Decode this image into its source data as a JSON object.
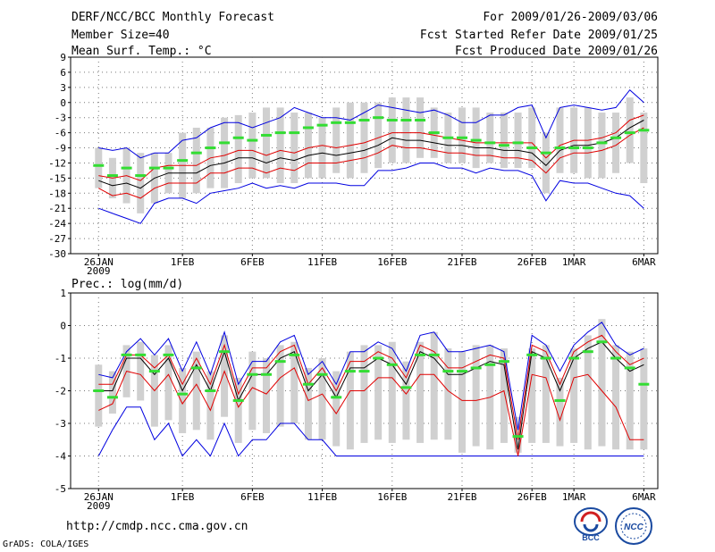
{
  "header": {
    "title": "DERF/NCC/BCC Monthly Forecast",
    "member_size": "Member Size=40",
    "variable": "Mean Surf. Temp.: °C",
    "period": "For 2009/01/26-2009/03/06",
    "fcst_started": "Fcst Started Refer Date 2009/01/25",
    "fcst_produced": "Fcst Produced Date 2009/01/26"
  },
  "footer": {
    "url": "http://cmdp.ncc.cma.gov.cn",
    "credit": "GrADS: COLA/IGES",
    "logo_left_text": "BCC",
    "logo_right_text": "NCC"
  },
  "colors": {
    "ensemble_mean": "#000000",
    "spread_band": "#e00000",
    "extreme_range": "#0000e0",
    "observed_climate": "#33dd33",
    "member_bar": "#d0d0d0"
  },
  "chart_data": [
    {
      "type": "line",
      "title": "Mean Surf. Temp.: °C",
      "x_tick_labels": [
        "26JAN\n2009",
        "1FEB",
        "6FEB",
        "11FEB",
        "16FEB",
        "21FEB",
        "26FEB",
        "1MAR",
        "6MAR"
      ],
      "x_tick_days": [
        0,
        6,
        11,
        16,
        21,
        26,
        31,
        34,
        39
      ],
      "ylim": [
        -30,
        9
      ],
      "yticks": [
        9,
        6,
        3,
        0,
        -3,
        -6,
        -9,
        -12,
        -15,
        -18,
        -21,
        -24,
        -27,
        -30
      ],
      "ytick_labels": [
        "9",
        "6",
        "3",
        "0",
        "-3",
        "-6",
        "-9",
        "-12",
        "-15",
        "-18",
        "-21",
        "-24",
        "-27",
        "-30"
      ],
      "days": [
        0,
        1,
        2,
        3,
        4,
        5,
        6,
        7,
        8,
        9,
        10,
        11,
        12,
        13,
        14,
        15,
        16,
        17,
        18,
        19,
        20,
        21,
        22,
        23,
        24,
        25,
        26,
        27,
        28,
        29,
        30,
        31,
        32,
        33,
        34,
        35,
        36,
        37,
        38,
        39
      ],
      "series": [
        {
          "name": "ensemble_mean",
          "values": [
            -15.5,
            -16.5,
            -16,
            -17,
            -15,
            -14,
            -14,
            -14,
            -12.5,
            -12,
            -11,
            -11,
            -12,
            -11,
            -11.5,
            -10.5,
            -10,
            -10.5,
            -10,
            -9.5,
            -8.5,
            -7,
            -7.5,
            -7.5,
            -8,
            -8.5,
            -8.5,
            -9,
            -9,
            -9.5,
            -9.5,
            -10,
            -12.5,
            -9.5,
            -8.5,
            -8.5,
            -8,
            -7,
            -5,
            -3.5
          ]
        },
        {
          "name": "upper_spread",
          "values": [
            -14.5,
            -15,
            -14.5,
            -15.5,
            -13,
            -12.5,
            -12.5,
            -12.5,
            -11,
            -10.5,
            -9.5,
            -9.5,
            -10.5,
            -9.5,
            -10,
            -9,
            -8.5,
            -9,
            -8.5,
            -8,
            -7,
            -6,
            -6,
            -6,
            -6.5,
            -7,
            -7.5,
            -8,
            -8,
            -8,
            -8,
            -8,
            -11,
            -8.5,
            -7.5,
            -7.5,
            -7,
            -6,
            -3.5,
            -2.5
          ]
        },
        {
          "name": "lower_spread",
          "values": [
            -17,
            -18.5,
            -18,
            -19,
            -17,
            -16,
            -16,
            -16,
            -14,
            -14,
            -13,
            -13,
            -14,
            -13,
            -13.5,
            -12,
            -12,
            -12,
            -11.5,
            -11,
            -10,
            -8.5,
            -9,
            -9,
            -9.5,
            -10,
            -10,
            -10.5,
            -10.5,
            -11,
            -11,
            -11.5,
            -14,
            -11,
            -10,
            -10,
            -9.5,
            -8.5,
            -6.5,
            -5
          ]
        },
        {
          "name": "max_member",
          "values": [
            -9,
            -9.5,
            -9,
            -11,
            -10,
            -10,
            -7.5,
            -7,
            -5,
            -4,
            -4,
            -5,
            -4,
            -3,
            -1,
            -2,
            -3,
            -3,
            -3.5,
            -2,
            -0.5,
            -1,
            -1.5,
            -2,
            -1.5,
            -2.5,
            -4,
            -4,
            -2.5,
            -2.5,
            -1,
            -0.5,
            -7,
            -1,
            -0.5,
            -1,
            -1.5,
            -1,
            2.5,
            0
          ]
        },
        {
          "name": "min_member",
          "values": [
            -21,
            -22,
            -23,
            -24,
            -20,
            -19,
            -19,
            -20,
            -18,
            -17.5,
            -17,
            -16,
            -17,
            -16.5,
            -17,
            -16,
            -16,
            -16,
            -16.5,
            -16.5,
            -13.5,
            -13.5,
            -13,
            -12,
            -12,
            -13,
            -13,
            -14,
            -13,
            -13.5,
            -13.5,
            -14.5,
            -19.5,
            -15.5,
            -16,
            -16,
            -17,
            -18,
            -18.5,
            -21
          ]
        },
        {
          "name": "observed_climate",
          "values": [
            -12.5,
            -14.5,
            -13,
            -14.5,
            -13,
            -13,
            -11.5,
            -10,
            -9,
            -8,
            -7,
            -7.5,
            -6.5,
            -6,
            -6,
            -5,
            -4.5,
            -4,
            -4,
            -3.5,
            -3,
            -3.5,
            -3.5,
            -3.5,
            -6,
            -7,
            -7,
            -7.5,
            -8,
            -8.5,
            -8,
            -9,
            -10,
            -9,
            -9,
            -9,
            -8,
            -7,
            -6,
            -5.5
          ]
        },
        {
          "name": "member_bar_top",
          "values": [
            -9,
            -11,
            -9,
            -10,
            -10,
            -10,
            -6,
            -5,
            -5,
            -3,
            -2.5,
            -2,
            -1,
            -1,
            -2,
            -2,
            -3,
            -1,
            0,
            0,
            0,
            1,
            1,
            1,
            -1,
            -2,
            -1,
            -1,
            -2,
            -2,
            -2,
            -1,
            -6,
            -1,
            -1,
            -1,
            -2,
            -2,
            1,
            -2
          ]
        },
        {
          "name": "member_bar_bottom",
          "values": [
            -17,
            -19,
            -20,
            -22,
            -20,
            -18,
            -19,
            -18,
            -17,
            -17,
            -16,
            -15,
            -15,
            -16,
            -16,
            -15,
            -15,
            -14,
            -15,
            -14,
            -13,
            -12,
            -12,
            -11,
            -11,
            -12,
            -12,
            -13,
            -12,
            -13,
            -13,
            -13,
            -18,
            -14,
            -14,
            -15,
            -15,
            -14,
            -12,
            -16
          ]
        }
      ]
    },
    {
      "type": "line",
      "title": "Prec.: log(mm/d)",
      "x_tick_labels": [
        "26JAN\n2009",
        "1FEB",
        "6FEB",
        "11FEB",
        "16FEB",
        "21FEB",
        "26FEB",
        "1MAR",
        "6MAR"
      ],
      "x_tick_days": [
        0,
        6,
        11,
        16,
        21,
        26,
        31,
        34,
        39
      ],
      "ylim": [
        -5,
        1
      ],
      "yticks": [
        1,
        0,
        -1,
        -2,
        -3,
        -4,
        -5
      ],
      "ytick_labels": [
        "1",
        "0",
        "-1",
        "-2",
        "-3",
        "-4",
        "-5"
      ],
      "days": [
        0,
        1,
        2,
        3,
        4,
        5,
        6,
        7,
        8,
        9,
        10,
        11,
        12,
        13,
        14,
        15,
        16,
        17,
        18,
        19,
        20,
        21,
        22,
        23,
        24,
        25,
        26,
        27,
        28,
        29,
        30,
        31,
        32,
        33,
        34,
        35,
        36,
        37,
        38,
        39
      ],
      "series": [
        {
          "name": "ensemble_mean",
          "values": [
            -2,
            -2,
            -1,
            -1,
            -1.5,
            -1,
            -2,
            -1.2,
            -2,
            -0.8,
            -2.3,
            -1.5,
            -1.5,
            -1,
            -0.8,
            -2,
            -1.5,
            -2.2,
            -1.3,
            -1.3,
            -1,
            -1.2,
            -1.8,
            -0.8,
            -1,
            -1.5,
            -1.5,
            -1.3,
            -1.1,
            -1.2,
            -3.8,
            -0.8,
            -1,
            -2,
            -1,
            -0.7,
            -0.5,
            -1,
            -1.4,
            -1.2
          ]
        },
        {
          "name": "upper_spread",
          "values": [
            -1.8,
            -1.8,
            -0.9,
            -0.9,
            -1.3,
            -0.9,
            -1.8,
            -1,
            -1.8,
            -0.6,
            -2.1,
            -1.3,
            -1.3,
            -0.8,
            -0.6,
            -1.8,
            -1.3,
            -2,
            -1.1,
            -1.1,
            -0.8,
            -1,
            -1.6,
            -0.6,
            -0.8,
            -1.3,
            -1.3,
            -1.1,
            -0.9,
            -1,
            -3.5,
            -0.6,
            -0.8,
            -1.8,
            -0.8,
            -0.5,
            -0.3,
            -0.8,
            -1.2,
            -1
          ]
        },
        {
          "name": "lower_spread",
          "values": [
            -2.6,
            -2.4,
            -1.4,
            -1.5,
            -2,
            -1.5,
            -2.4,
            -1.8,
            -2.6,
            -1.4,
            -2.5,
            -1.9,
            -2.1,
            -1.6,
            -1.3,
            -2.3,
            -2.1,
            -2.7,
            -2,
            -2,
            -1.6,
            -1.6,
            -2.1,
            -1.5,
            -1.5,
            -2,
            -2.3,
            -2.3,
            -2.2,
            -2,
            -4,
            -1.5,
            -1.6,
            -2.9,
            -1.6,
            -1.5,
            -2,
            -2.5,
            -3.5,
            -3.5
          ]
        },
        {
          "name": "max_member",
          "values": [
            -1.5,
            -1.6,
            -0.8,
            -0.4,
            -0.9,
            -0.4,
            -1.4,
            -0.5,
            -1.5,
            -0.2,
            -1.8,
            -1.1,
            -1.1,
            -0.5,
            -0.3,
            -1.5,
            -1.1,
            -1.8,
            -0.8,
            -0.8,
            -0.5,
            -0.7,
            -1.4,
            -0.3,
            -0.2,
            -0.8,
            -0.8,
            -0.7,
            -0.6,
            -0.8,
            -3.2,
            -0.3,
            -0.6,
            -1.4,
            -0.6,
            -0.2,
            0.1,
            -0.6,
            -0.9,
            -0.7
          ]
        },
        {
          "name": "min_member",
          "values": [
            -4,
            -3.2,
            -2.5,
            -2.5,
            -3.5,
            -3,
            -4,
            -3.5,
            -4,
            -3,
            -4,
            -3.5,
            -3.5,
            -3,
            -3,
            -3.5,
            -3.5,
            -4,
            -4,
            -4,
            -4,
            -4,
            -4,
            -4,
            -4,
            -4,
            -4,
            -4,
            -4,
            -4,
            -4,
            -4,
            -4,
            -4,
            -4,
            -4,
            -4,
            -4,
            -4,
            -4
          ]
        },
        {
          "name": "observed_climate",
          "values": [
            -2,
            -2.2,
            -0.9,
            -0.9,
            -1.4,
            -0.9,
            -2.1,
            -1.3,
            -2,
            -0.8,
            -2.3,
            -1.5,
            -1.5,
            -1.1,
            -0.9,
            -1.8,
            -1.5,
            -2.2,
            -1.4,
            -1.4,
            -1,
            -1.2,
            -1.9,
            -0.9,
            -0.9,
            -1.4,
            -1.4,
            -1.3,
            -1.2,
            -1.1,
            -3.4,
            -0.9,
            -1,
            -2.3,
            -1,
            -0.8,
            -0.5,
            -1,
            -1.3,
            -1.8
          ]
        },
        {
          "name": "member_bar_top",
          "values": [
            -1.2,
            -1.4,
            -0.6,
            -0.5,
            -0.9,
            -0.6,
            -1.3,
            -0.8,
            -1.4,
            -0.3,
            -1.6,
            -0.8,
            -1,
            -0.6,
            -0.5,
            -1.3,
            -1,
            -1.4,
            -0.8,
            -0.6,
            -0.6,
            -0.5,
            -1.1,
            -0.5,
            -0.2,
            -0.7,
            -0.8,
            -0.6,
            -0.6,
            -0.7,
            -2.8,
            -0.7,
            -0.6,
            -1.6,
            -0.7,
            -0.3,
            0.2,
            -0.6,
            -0.8,
            -0.7
          ]
        },
        {
          "name": "member_bar_bottom",
          "values": [
            -3.1,
            -2.7,
            -2.2,
            -2.3,
            -3.1,
            -2.9,
            -3.3,
            -3.2,
            -3.5,
            -2.8,
            -3.6,
            -3.2,
            -3.3,
            -3.1,
            -3,
            -3.5,
            -3.5,
            -3.7,
            -3.8,
            -3.6,
            -3.5,
            -3.6,
            -3.5,
            -3.6,
            -3.5,
            -3.5,
            -3.9,
            -3.7,
            -3.8,
            -3.6,
            -3.9,
            -3.6,
            -3.6,
            -3.7,
            -3.6,
            -3.8,
            -3.7,
            -3.8,
            -3.8,
            -3.8
          ]
        }
      ]
    }
  ]
}
